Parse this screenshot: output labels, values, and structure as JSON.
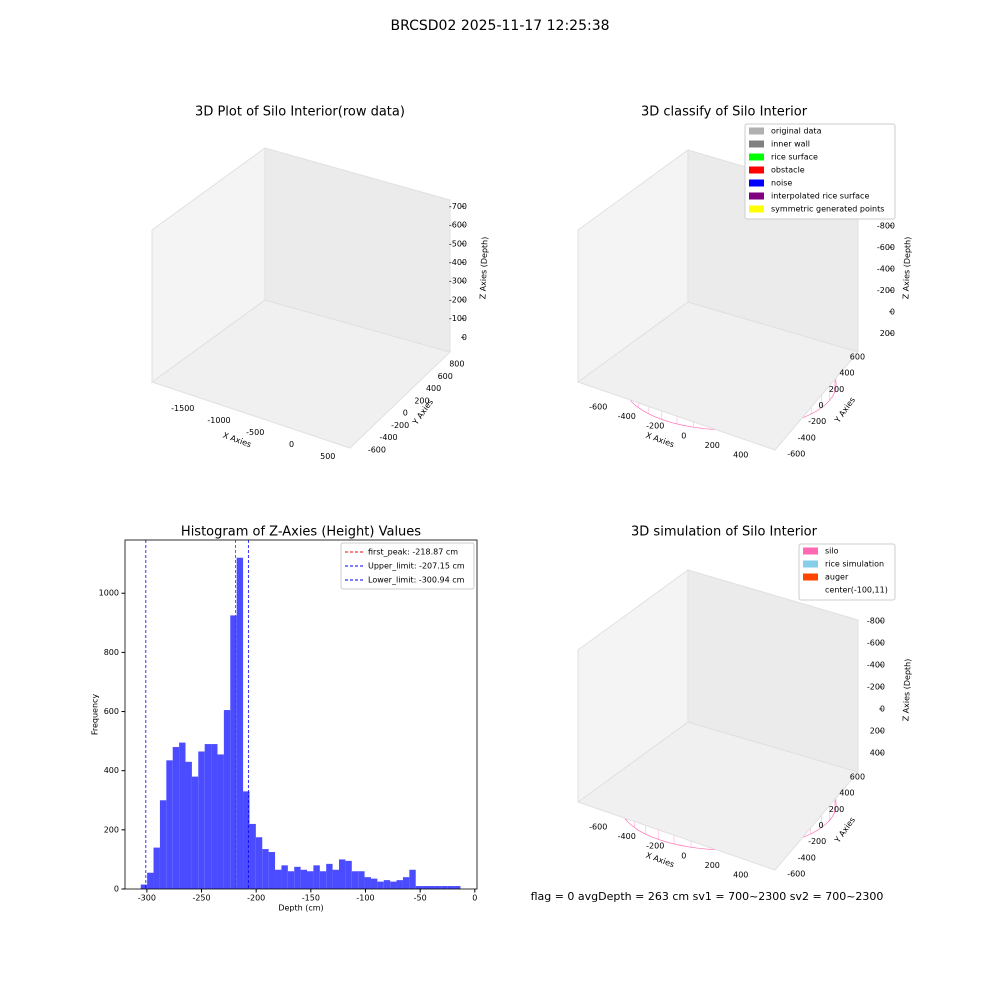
{
  "title": "BRCSD02 2025-11-17 12:25:38",
  "chart_data": [
    {
      "type": "scatter3d",
      "title": "3D Plot of Silo Interior(row data)",
      "xlabel": "X Axies",
      "ylabel": "Y Axies",
      "zlabel": "Z Axies (Depth)",
      "xlim": [
        -1800,
        600
      ],
      "ylim": [
        -700,
        900
      ],
      "zlim": [
        -750,
        30
      ],
      "xticks": [
        -1500,
        -1000,
        -500,
        0,
        500
      ],
      "yticks": [
        -600,
        -400,
        -200,
        0,
        200,
        400,
        600,
        800
      ],
      "zticks": [
        0,
        -100,
        -200,
        -300,
        -400,
        -500,
        -600,
        -700
      ]
    },
    {
      "type": "scatter3d",
      "title": "3D classify of Silo Interior",
      "xlabel": "X Axies",
      "ylabel": "Y Axies",
      "zlabel": "Z Axies (Depth)",
      "xlim": [
        -700,
        500
      ],
      "ylim": [
        -700,
        700
      ],
      "zlim": [
        -900,
        300
      ],
      "xticks": [
        -600,
        -400,
        -200,
        0,
        200,
        400
      ],
      "yticks": [
        -600,
        -400,
        -200,
        0,
        200,
        400,
        600
      ],
      "zticks": [
        200,
        0,
        -200,
        -400,
        -600,
        -800
      ],
      "legend": "upper right",
      "series": [
        {
          "name": "original data",
          "color": "#b0b0b0"
        },
        {
          "name": "inner wall",
          "color": "#808080"
        },
        {
          "name": "rice surface",
          "color": "#00ff00"
        },
        {
          "name": "obstacle",
          "color": "#ff0000"
        },
        {
          "name": "noise",
          "color": "#0000ff"
        },
        {
          "name": "interpolated rice surface",
          "color": "#800080"
        },
        {
          "name": "symmetric generated points",
          "color": "#ffff00"
        }
      ]
    },
    {
      "type": "scatter3d",
      "title": "3D simulation of Silo Interior",
      "xlabel": "X Axies",
      "ylabel": "Y Axies",
      "zlabel": "Z Axies (Depth)",
      "xlim": [
        -700,
        500
      ],
      "ylim": [
        -700,
        700
      ],
      "zlim": [
        -900,
        500
      ],
      "xticks": [
        -600,
        -400,
        -200,
        0,
        200,
        400
      ],
      "yticks": [
        -600,
        -400,
        -200,
        0,
        200,
        400,
        600
      ],
      "zticks": [
        400,
        200,
        0,
        -200,
        -400,
        -600,
        -800
      ],
      "legend": "upper right",
      "series": [
        {
          "name": "silo",
          "color": "#ff69b4"
        },
        {
          "name": "rice simulation",
          "color": "#87ceeb"
        },
        {
          "name": "auger",
          "color": "#ff4500"
        },
        {
          "name": "center(-100,11)",
          "color": null
        }
      ],
      "annotation": "flag = 0     avgDepth = 263 cm  sv1 = 700~2300  sv2 = 700~2300"
    },
    {
      "type": "histogram",
      "title": "Histogram of Z-Axies (Height) Values",
      "xlabel": "Depth (cm)",
      "ylabel": "Frequency",
      "color": "#4b4bff",
      "xlim": [
        -320,
        2
      ],
      "ylim": [
        0,
        1180
      ],
      "xticks": [
        -300,
        -250,
        -200,
        -150,
        -100,
        -50,
        0
      ],
      "yticks": [
        0,
        200,
        400,
        600,
        800,
        1000
      ],
      "bins": [
        -305.6,
        -299.75,
        -293.9,
        -288.05,
        -282.2,
        -276.35,
        -270.5,
        -264.65,
        -258.8,
        -252.95,
        -247.1,
        -241.25,
        -235.4,
        -229.55,
        -223.7,
        -217.85,
        -212,
        -206.15,
        -200.3,
        -194.45,
        -188.6,
        -182.75,
        -176.9,
        -171.05,
        -165.2,
        -159.35,
        -153.5,
        -147.65,
        -141.8,
        -135.95,
        -130.1,
        -124.25,
        -118.4,
        -112.55,
        -106.7,
        -100.85,
        -95,
        -89.15,
        -83.3,
        -77.45,
        -71.6,
        -65.75,
        -59.9,
        -54.05,
        -48.2,
        -42.35,
        -36.5,
        -30.65,
        -24.8,
        -18.95,
        -13.1
      ],
      "values": [
        15,
        55,
        140,
        300,
        435,
        480,
        495,
        430,
        380,
        465,
        490,
        490,
        455,
        605,
        925,
        1120,
        330,
        220,
        175,
        135,
        125,
        65,
        80,
        60,
        75,
        65,
        60,
        80,
        60,
        85,
        65,
        100,
        95,
        60,
        60,
        40,
        35,
        25,
        30,
        25,
        30,
        40,
        65,
        10,
        10,
        10,
        10,
        10,
        10,
        10
      ],
      "legend": "upper right",
      "lines": [
        {
          "name": "first_peak: -218.87 cm",
          "value": -218.87,
          "color": "#ff0000"
        },
        {
          "name": "Upper_limit: -207.15 cm",
          "value": -207.15,
          "color": "#0000ff"
        },
        {
          "name": "Lower_limit: -300.94 cm",
          "value": -300.94,
          "color": "#0000ff"
        }
      ]
    }
  ]
}
